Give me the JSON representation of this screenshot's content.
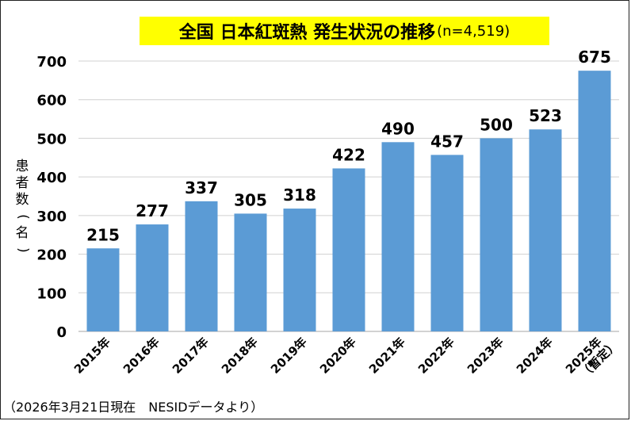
{
  "title": {
    "main": "全国 日本紅斑熱 発生状況の推移",
    "sub": "(n=4,519)"
  },
  "footnote": "（2026年3月21日現在　NESIDデータより）",
  "colors": {
    "bar": "#5b9bd5",
    "title_bg": "#ffff00",
    "grid": "#d0d0d0"
  },
  "chart_data": {
    "type": "bar",
    "title": "全国 日本紅斑熱 発生状況の推移(n=4,519)",
    "ylabel": "患者数(名)",
    "xlabel": "",
    "categories": [
      "2015年",
      "2016年",
      "2017年",
      "2018年",
      "2019年",
      "2020年",
      "2021年",
      "2022年",
      "2023年",
      "2024年",
      "2025年（暫定）"
    ],
    "values": [
      215,
      277,
      337,
      305,
      318,
      422,
      490,
      457,
      500,
      523,
      675
    ],
    "ylim": [
      0,
      700
    ],
    "yticks": [
      0,
      100,
      200,
      300,
      400,
      500,
      600,
      700
    ],
    "grid": true,
    "legend": "none"
  }
}
